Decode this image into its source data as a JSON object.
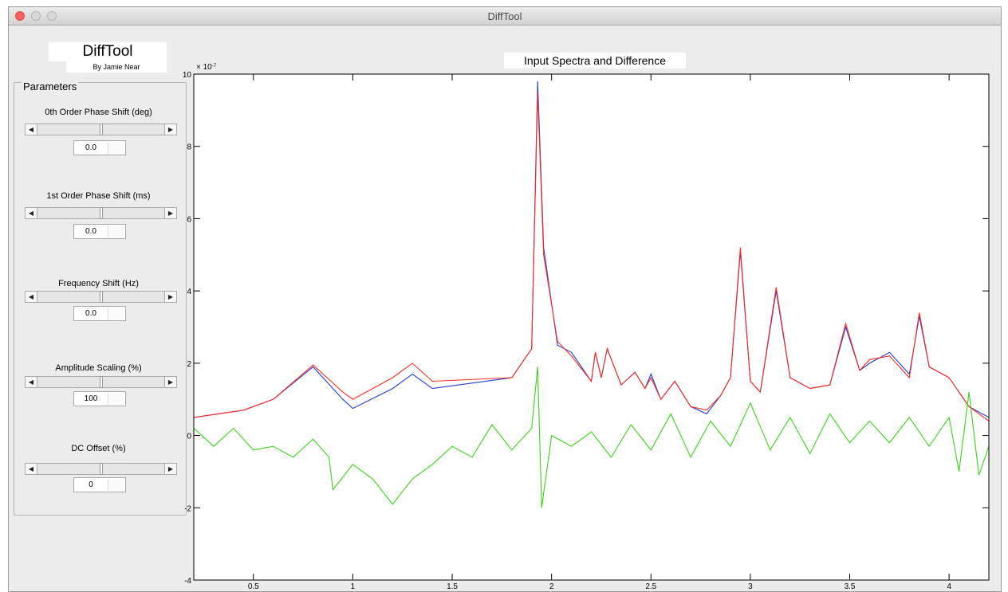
{
  "window": {
    "title": "DiffTool"
  },
  "app": {
    "title": "DiffTool",
    "byline": "By Jamie Near"
  },
  "parameters": {
    "title": "Parameters",
    "controls": [
      {
        "label": "0th Order Phase Shift (deg)",
        "value": "0.0",
        "slider_fraction": 0.5
      },
      {
        "label": "1st Order Phase Shift (ms)",
        "value": "0.0",
        "slider_fraction": 0.5
      },
      {
        "label": "Frequency Shift (Hz)",
        "value": "0.0",
        "slider_fraction": 0.5
      },
      {
        "label": "Amplitude Scaling (%)",
        "value": "100",
        "slider_fraction": 0.5
      },
      {
        "label": "DC Offset (%)",
        "value": "0",
        "slider_fraction": 0.5
      }
    ]
  },
  "plot": {
    "title": "Input Spectra and Difference"
  },
  "chart_data": {
    "type": "line",
    "title": "Input Spectra and Difference",
    "xlim": [
      0.2,
      4.2
    ],
    "ylim": [
      -4,
      10
    ],
    "y_exponent_label": "× 10",
    "y_exponent": "-7",
    "x_ticks": [
      "0.5",
      "1",
      "1.5",
      "2",
      "2.5",
      "3",
      "3.5",
      "4"
    ],
    "y_ticks": [
      "-4",
      "-2",
      "0",
      "2",
      "4",
      "6",
      "8",
      "10"
    ],
    "grid": false,
    "legend": "none",
    "colors": {
      "blue": "#1f3fd6",
      "red": "#ff2a1a",
      "green": "#39d418",
      "axes": "#000000"
    },
    "series": [
      {
        "color": "#1f3fd6",
        "points": [
          [
            0.2,
            0.5
          ],
          [
            0.45,
            0.7
          ],
          [
            0.6,
            1.0
          ],
          [
            0.8,
            1.9
          ],
          [
            0.95,
            1.0
          ],
          [
            1.0,
            0.75
          ],
          [
            1.2,
            1.3
          ],
          [
            1.3,
            1.7
          ],
          [
            1.4,
            1.3
          ],
          [
            1.8,
            1.6
          ],
          [
            1.9,
            2.4
          ],
          [
            1.93,
            9.8
          ],
          [
            1.96,
            5.2
          ],
          [
            2.03,
            2.5
          ],
          [
            2.1,
            2.3
          ],
          [
            2.2,
            1.5
          ],
          [
            2.22,
            2.3
          ],
          [
            2.25,
            1.6
          ],
          [
            2.28,
            2.4
          ],
          [
            2.35,
            1.4
          ],
          [
            2.42,
            1.75
          ],
          [
            2.47,
            1.3
          ],
          [
            2.5,
            1.7
          ],
          [
            2.55,
            1.0
          ],
          [
            2.62,
            1.5
          ],
          [
            2.7,
            0.8
          ],
          [
            2.78,
            0.6
          ],
          [
            2.85,
            1.1
          ],
          [
            2.9,
            1.6
          ],
          [
            2.95,
            5.1
          ],
          [
            3.0,
            1.5
          ],
          [
            3.05,
            1.2
          ],
          [
            3.13,
            4.0
          ],
          [
            3.2,
            1.6
          ],
          [
            3.3,
            1.3
          ],
          [
            3.4,
            1.4
          ],
          [
            3.48,
            3.0
          ],
          [
            3.55,
            1.8
          ],
          [
            3.6,
            2.0
          ],
          [
            3.7,
            2.3
          ],
          [
            3.8,
            1.7
          ],
          [
            3.85,
            3.3
          ],
          [
            3.9,
            1.9
          ],
          [
            4.0,
            1.6
          ],
          [
            4.1,
            0.8
          ],
          [
            4.2,
            0.5
          ]
        ]
      },
      {
        "color": "#ff2a1a",
        "points": [
          [
            0.2,
            0.5
          ],
          [
            0.45,
            0.7
          ],
          [
            0.6,
            1.0
          ],
          [
            0.8,
            1.95
          ],
          [
            0.95,
            1.2
          ],
          [
            1.0,
            1.0
          ],
          [
            1.2,
            1.6
          ],
          [
            1.3,
            2.0
          ],
          [
            1.4,
            1.5
          ],
          [
            1.8,
            1.6
          ],
          [
            1.9,
            2.4
          ],
          [
            1.93,
            9.5
          ],
          [
            1.96,
            5.0
          ],
          [
            2.03,
            2.6
          ],
          [
            2.1,
            2.2
          ],
          [
            2.2,
            1.5
          ],
          [
            2.22,
            2.3
          ],
          [
            2.25,
            1.6
          ],
          [
            2.28,
            2.4
          ],
          [
            2.35,
            1.4
          ],
          [
            2.42,
            1.75
          ],
          [
            2.47,
            1.3
          ],
          [
            2.5,
            1.6
          ],
          [
            2.55,
            1.0
          ],
          [
            2.62,
            1.5
          ],
          [
            2.7,
            0.8
          ],
          [
            2.78,
            0.7
          ],
          [
            2.85,
            1.1
          ],
          [
            2.9,
            1.6
          ],
          [
            2.95,
            5.2
          ],
          [
            3.0,
            1.5
          ],
          [
            3.05,
            1.2
          ],
          [
            3.13,
            4.1
          ],
          [
            3.2,
            1.6
          ],
          [
            3.3,
            1.3
          ],
          [
            3.4,
            1.4
          ],
          [
            3.48,
            3.1
          ],
          [
            3.55,
            1.8
          ],
          [
            3.6,
            2.1
          ],
          [
            3.7,
            2.2
          ],
          [
            3.8,
            1.6
          ],
          [
            3.85,
            3.4
          ],
          [
            3.9,
            1.9
          ],
          [
            4.0,
            1.6
          ],
          [
            4.1,
            0.8
          ],
          [
            4.2,
            0.4
          ]
        ]
      },
      {
        "color": "#39d418",
        "points": [
          [
            0.2,
            0.2
          ],
          [
            0.3,
            -0.3
          ],
          [
            0.4,
            0.2
          ],
          [
            0.5,
            -0.4
          ],
          [
            0.6,
            -0.3
          ],
          [
            0.7,
            -0.6
          ],
          [
            0.8,
            -0.1
          ],
          [
            0.88,
            -0.6
          ],
          [
            0.9,
            -1.5
          ],
          [
            1.0,
            -0.8
          ],
          [
            1.1,
            -1.2
          ],
          [
            1.2,
            -1.9
          ],
          [
            1.3,
            -1.2
          ],
          [
            1.4,
            -0.8
          ],
          [
            1.5,
            -0.3
          ],
          [
            1.6,
            -0.6
          ],
          [
            1.7,
            0.3
          ],
          [
            1.8,
            -0.4
          ],
          [
            1.9,
            0.2
          ],
          [
            1.93,
            1.9
          ],
          [
            1.95,
            -2.0
          ],
          [
            2.0,
            0.0
          ],
          [
            2.1,
            -0.3
          ],
          [
            2.2,
            0.1
          ],
          [
            2.3,
            -0.6
          ],
          [
            2.4,
            0.3
          ],
          [
            2.5,
            -0.4
          ],
          [
            2.6,
            0.6
          ],
          [
            2.7,
            -0.6
          ],
          [
            2.8,
            0.4
          ],
          [
            2.9,
            -0.3
          ],
          [
            3.0,
            0.9
          ],
          [
            3.1,
            -0.4
          ],
          [
            3.2,
            0.5
          ],
          [
            3.3,
            -0.5
          ],
          [
            3.4,
            0.6
          ],
          [
            3.5,
            -0.2
          ],
          [
            3.6,
            0.4
          ],
          [
            3.7,
            -0.2
          ],
          [
            3.8,
            0.5
          ],
          [
            3.9,
            -0.3
          ],
          [
            4.0,
            0.5
          ],
          [
            4.05,
            -1.0
          ],
          [
            4.1,
            1.2
          ],
          [
            4.15,
            -1.1
          ],
          [
            4.2,
            -0.3
          ]
        ]
      }
    ]
  }
}
